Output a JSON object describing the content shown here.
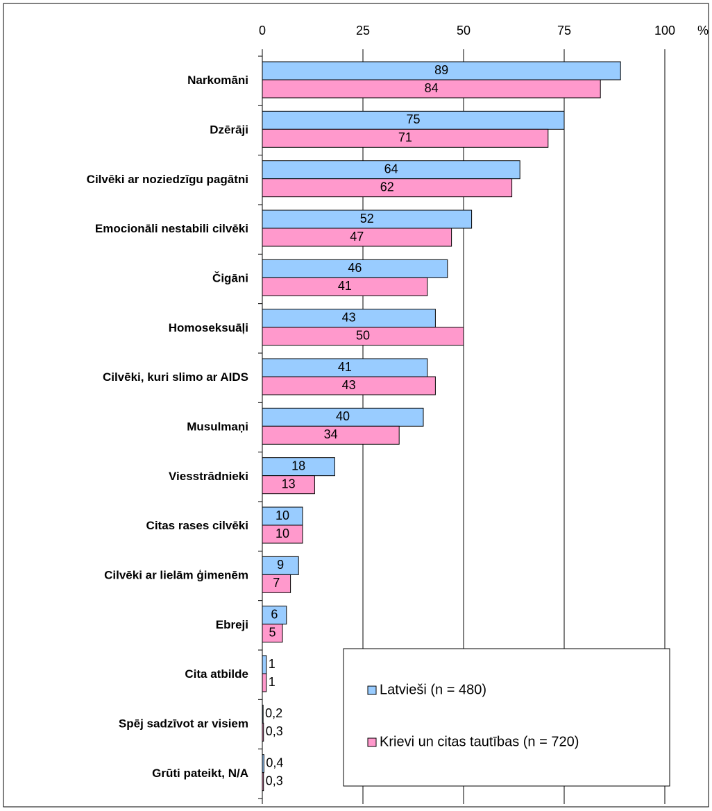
{
  "chart_data": {
    "type": "hbar",
    "xlabel": "%",
    "categories": [
      "Narkomāni",
      "Dzērāji",
      "Cilvēki  ar noziedzīgu pagātni",
      "Emocionāli nestabili cilvēki",
      "Čigāni",
      "Homoseksuāļi",
      "Cilvēki, kuri slimo ar AIDS",
      "Musulmaņi",
      "Viesstrādnieki",
      "Citas rases cilvēki",
      "Cilvēki ar lielām ģimenēm",
      "Ebreji",
      "Cita atbilde",
      "Spēj sadzīvot ar visiem",
      "Grūti pateikt, N/A"
    ],
    "series": [
      {
        "name": "Latvieši (n = 480)",
        "color": "#99ccff",
        "values": [
          89,
          75,
          64,
          52,
          46,
          43,
          41,
          40,
          18,
          10,
          9,
          6,
          1,
          0.2,
          0.4
        ],
        "value_labels": [
          "89",
          "75",
          "64",
          "52",
          "46",
          "43",
          "41",
          "40",
          "18",
          "10",
          "9",
          "6",
          "1",
          "0,2",
          "0,4"
        ]
      },
      {
        "name": "Krievi un citas tautības (n = 720)",
        "color": "#ff99cc",
        "values": [
          84,
          71,
          62,
          47,
          41,
          50,
          43,
          34,
          13,
          10,
          7,
          5,
          1,
          0.3,
          0.3
        ],
        "value_labels": [
          "84",
          "71",
          "62",
          "47",
          "41",
          "50",
          "43",
          "34",
          "13",
          "10",
          "7",
          "5",
          "1",
          "0,3",
          "0,3"
        ]
      }
    ],
    "xlim": [
      0,
      100
    ],
    "xticks": [
      0,
      25,
      50,
      75,
      100
    ],
    "grid": true,
    "legend": "lower right"
  }
}
